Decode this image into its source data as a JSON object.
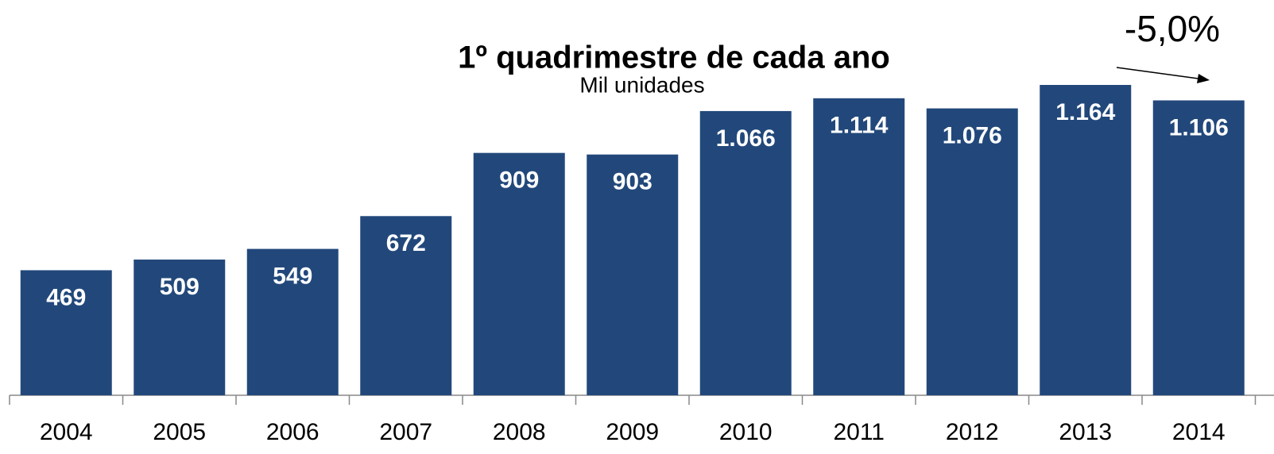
{
  "chart_data": {
    "type": "bar",
    "title": "1º quadrimestre de cada ano",
    "subtitle": "Mil unidades",
    "annotation": "-5,0%",
    "categories": [
      "2004",
      "2005",
      "2006",
      "2007",
      "2008",
      "2009",
      "2010",
      "2011",
      "2012",
      "2013",
      "2014"
    ],
    "values": [
      469,
      509,
      549,
      672,
      909,
      903,
      1066,
      1114,
      1076,
      1164,
      1106
    ],
    "value_labels": [
      "469",
      "509",
      "549",
      "672",
      "909",
      "903",
      "1.066",
      "1.114",
      "1.076",
      "1.164",
      "1.106"
    ],
    "color": "#22487b"
  }
}
